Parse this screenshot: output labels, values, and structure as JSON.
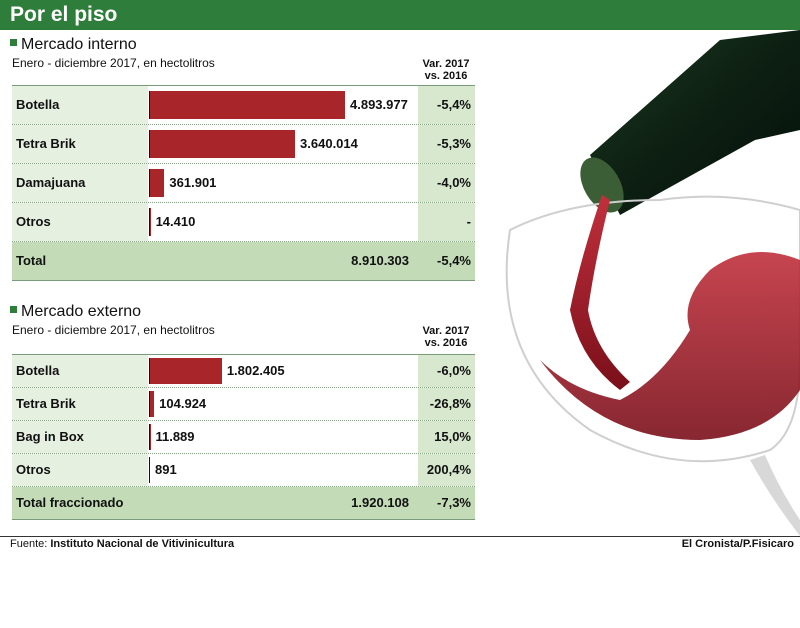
{
  "header": {
    "title": "Por el piso"
  },
  "chart_data": [
    {
      "type": "bar",
      "title": "Mercado interno",
      "subtitle": "Enero - diciembre 2017, en hectolitros",
      "var_header": [
        "Var. 2017",
        "vs. 2016"
      ],
      "categories": [
        "Botella",
        "Tetra Brik",
        "Damajuana",
        "Otros"
      ],
      "values": [
        4893977,
        3640014,
        361901,
        14410
      ],
      "value_labels": [
        "4.893.977",
        "3.640.014",
        "361.901",
        "14.410"
      ],
      "variation": [
        "-5,4%",
        "-5,3%",
        "-4,0%",
        "-"
      ],
      "total": {
        "label": "Total",
        "value_label": "8.910.303",
        "variation": "-5,4%"
      }
    },
    {
      "type": "bar",
      "title": "Mercado externo",
      "subtitle": "Enero - diciembre 2017, en hectolitros",
      "var_header": [
        "Var. 2017",
        "vs. 2016"
      ],
      "categories": [
        "Botella",
        "Tetra Brik",
        "Bag in Box",
        "Otros"
      ],
      "values": [
        1802405,
        104924,
        11889,
        891
      ],
      "value_labels": [
        "1.802.405",
        "104.924",
        "11.889",
        "891"
      ],
      "variation": [
        "-6,0%",
        "-26,8%",
        "15,0%",
        "200,4%"
      ],
      "total": {
        "label": "Total fraccionado",
        "value_label": "1.920.108",
        "variation": "-7,3%"
      }
    }
  ],
  "footer": {
    "source_prefix": "Fuente: ",
    "source": "Instituto Nacional de Vitivinicultura",
    "credit": "El Cronista/P.Fisicaro"
  },
  "colors": {
    "header": "#2e7d3a",
    "bar": "#a8252a",
    "wine": "#9a1622"
  }
}
